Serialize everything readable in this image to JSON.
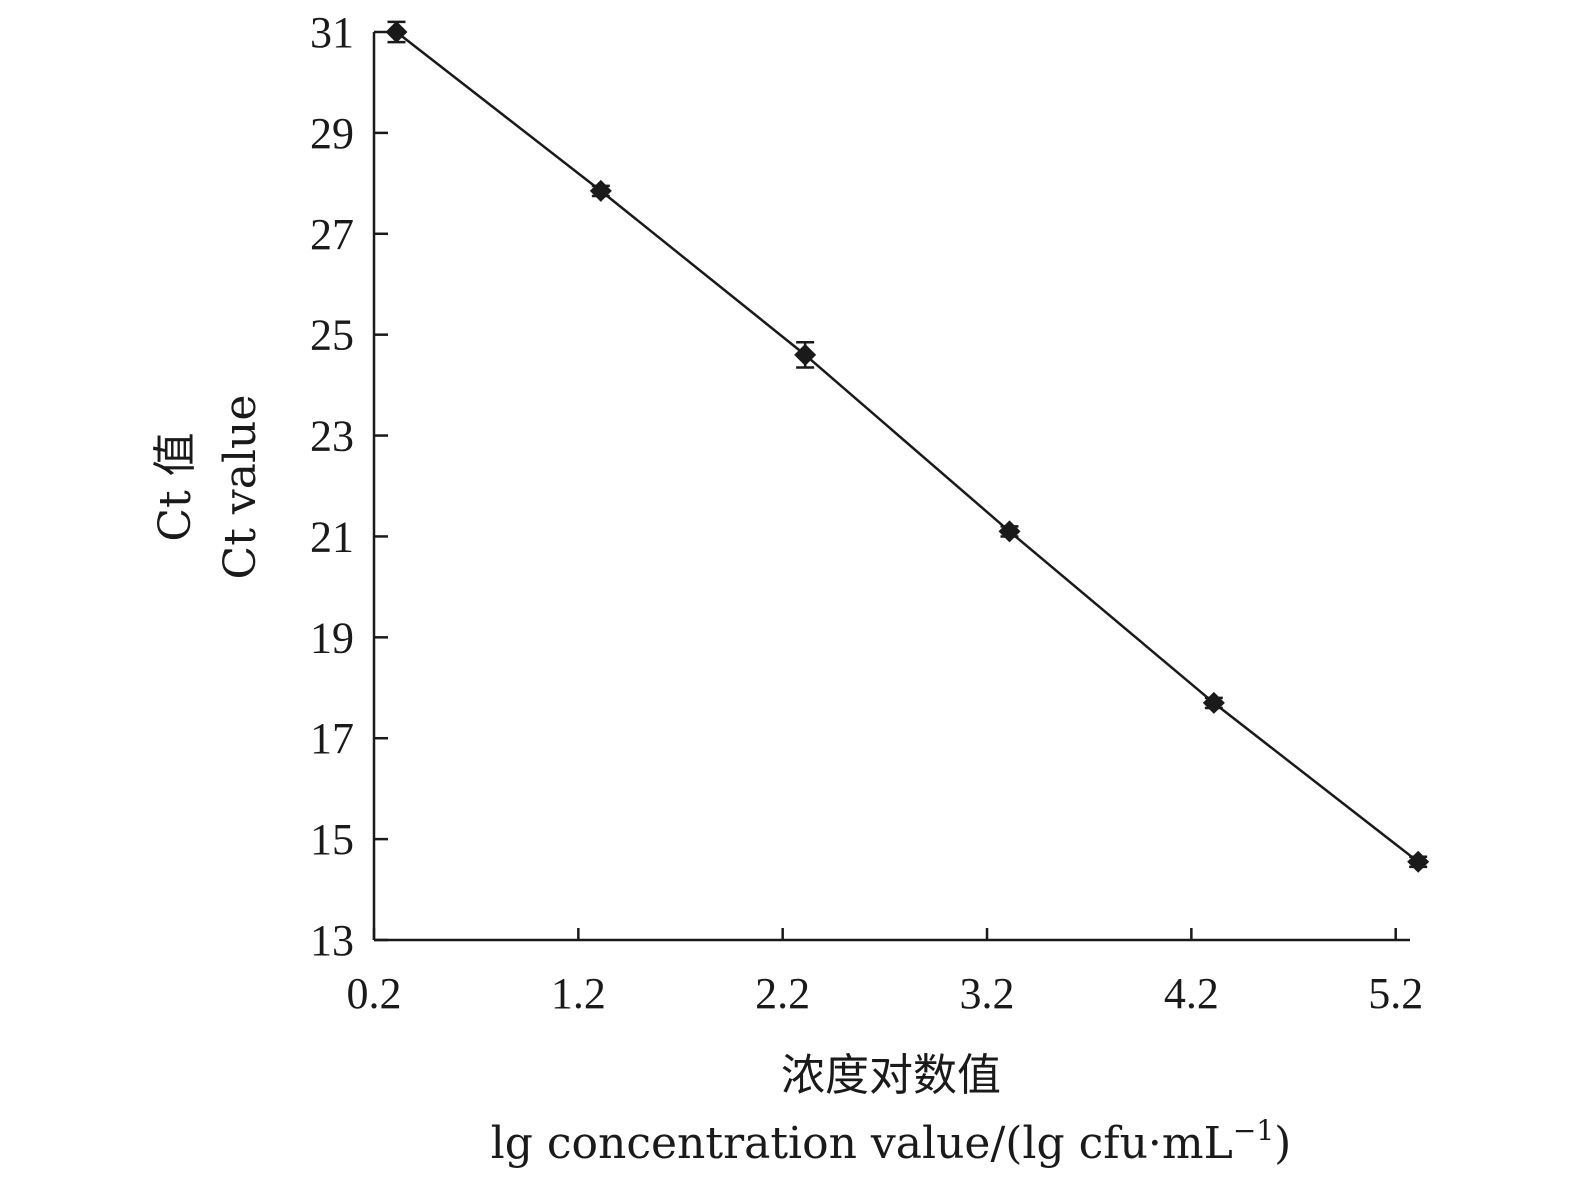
{
  "chart_data": {
    "type": "line",
    "title": "",
    "xlabel_cn": "浓度对数值",
    "xlabel_en": "lg concentration value/(lg cfu·mL",
    "xlabel_en_sup": "−1",
    "xlabel_en_close": ")",
    "ylabel_cn": "Ct 值",
    "ylabel_en": "Ct value",
    "xlim": [
      0.2,
      5.27
    ],
    "ylim": [
      13,
      31
    ],
    "x_ticks": [
      0.2,
      1.2,
      2.2,
      3.2,
      4.2,
      5.2
    ],
    "x_tick_labels": [
      "0.2",
      "1.2",
      "2.2",
      "3.2",
      "4.2",
      "5.2"
    ],
    "y_ticks": [
      13,
      15,
      17,
      19,
      21,
      23,
      25,
      27,
      29,
      31
    ],
    "y_tick_labels": [
      "13",
      "15",
      "17",
      "19",
      "21",
      "23",
      "25",
      "27",
      "29",
      "31"
    ],
    "grid": false,
    "marker": "diamond",
    "series": [
      {
        "x": [
          0.31,
          1.31,
          2.31,
          3.31,
          4.31,
          5.31
        ],
        "y": [
          31.0,
          27.85,
          24.6,
          21.1,
          17.7,
          14.55
        ],
        "error": [
          0.2,
          0.1,
          0.25,
          0.1,
          0.1,
          0.1
        ]
      }
    ],
    "colors": {
      "ink": "#1a1a1a"
    }
  }
}
